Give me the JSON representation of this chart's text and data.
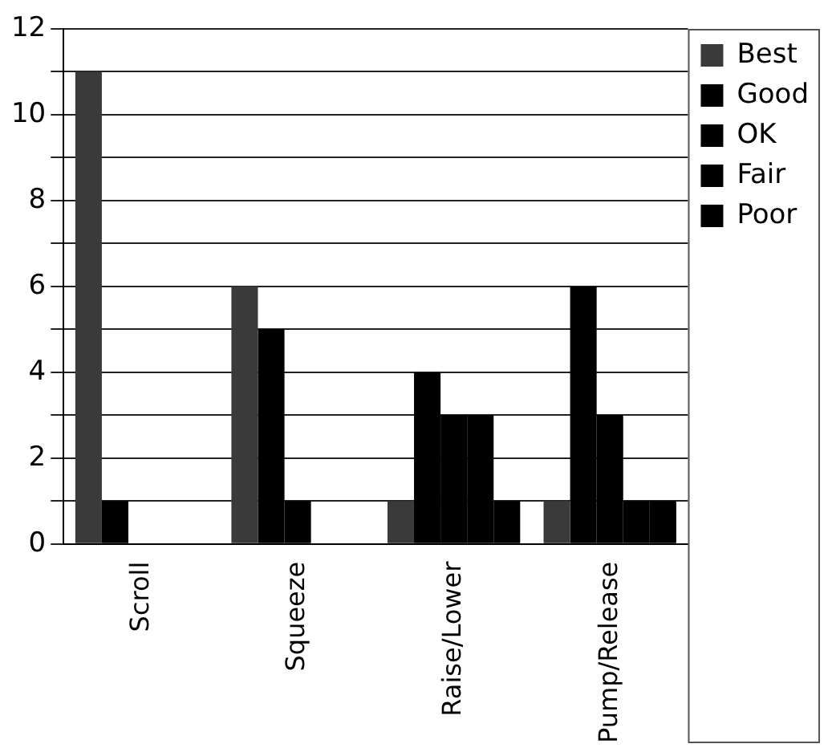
{
  "chart_data": {
    "type": "bar",
    "categories": [
      "Scroll",
      "Squeeze",
      "Raise/Lower",
      "Pump/Release"
    ],
    "series": [
      {
        "name": "Best",
        "color": "#3a3a3a",
        "values": [
          11,
          6,
          1,
          1
        ]
      },
      {
        "name": "Good",
        "color": "#000000",
        "values": [
          1,
          5,
          4,
          6
        ]
      },
      {
        "name": "OK",
        "color": "#000000",
        "values": [
          0,
          1,
          3,
          3
        ]
      },
      {
        "name": "Fair",
        "color": "#000000",
        "values": [
          0,
          0,
          3,
          1
        ]
      },
      {
        "name": "Poor",
        "color": "#000000",
        "values": [
          0,
          0,
          1,
          1
        ]
      }
    ],
    "ylim": [
      0,
      12
    ],
    "yticks": [
      0,
      {
        "value": 1,
        "label": null
      },
      2,
      {
        "value": 3,
        "label": null
      },
      4,
      {
        "value": 5,
        "label": null
      },
      6,
      {
        "value": 7,
        "label": null
      },
      8,
      {
        "value": 9,
        "label": null
      },
      10,
      {
        "value": 11,
        "label": null
      },
      12
    ],
    "grid": "y",
    "legend": "top right"
  }
}
